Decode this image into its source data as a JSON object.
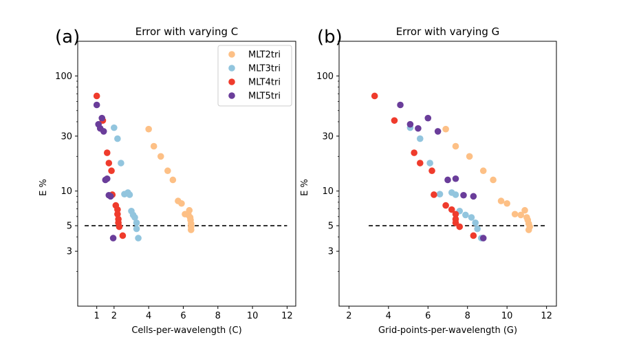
{
  "colors": {
    "MLT2tri": "#fdc086",
    "MLT3tri": "#92c5de",
    "MLT4tri": "#ef3b2c",
    "MLT5tri": "#6a3d9a"
  },
  "chart_data": [
    {
      "type": "scatter",
      "panel_label": "(a)",
      "title": "Error with varying C",
      "xlabel": "Cells-per-wavelength (C)",
      "ylabel": "E %",
      "xscale": "linear",
      "yscale": "log",
      "xlim": [
        -0.1,
        12.5
      ],
      "ylim": [
        1.0,
        200
      ],
      "xticks": [
        1,
        2,
        4,
        6,
        8,
        10,
        12
      ],
      "yticks": [
        3,
        5,
        10,
        30,
        100
      ],
      "legend": "top-right",
      "reference_line": {
        "y": 5,
        "x_range": [
          0.3,
          12.0
        ],
        "style": "dashed"
      },
      "series": [
        {
          "name": "MLT2tri",
          "points": [
            [
              4.0,
              34.5
            ],
            [
              4.3,
              24.5
            ],
            [
              4.7,
              20.0
            ],
            [
              5.1,
              15.0
            ],
            [
              5.4,
              12.5
            ],
            [
              5.7,
              8.2
            ],
            [
              5.9,
              7.8
            ],
            [
              6.1,
              6.3
            ],
            [
              6.3,
              6.2
            ],
            [
              6.35,
              6.8
            ],
            [
              6.4,
              5.9
            ],
            [
              6.42,
              5.6
            ],
            [
              6.45,
              5.2
            ],
            [
              6.45,
              4.9
            ],
            [
              6.45,
              4.6
            ]
          ]
        },
        {
          "name": "MLT3tri",
          "points": [
            [
              2.0,
              35.5
            ],
            [
              2.2,
              28.5
            ],
            [
              2.4,
              17.5
            ],
            [
              2.6,
              9.4
            ],
            [
              2.8,
              9.7
            ],
            [
              2.9,
              9.3
            ],
            [
              3.0,
              6.7
            ],
            [
              3.1,
              6.2
            ],
            [
              3.2,
              5.9
            ],
            [
              3.3,
              5.3
            ],
            [
              3.3,
              4.7
            ],
            [
              3.4,
              3.9
            ]
          ]
        },
        {
          "name": "MLT4tri",
          "points": [
            [
              1.0,
              67
            ],
            [
              1.35,
              41
            ],
            [
              1.6,
              21.5
            ],
            [
              1.7,
              17.5
            ],
            [
              1.85,
              15
            ],
            [
              1.9,
              9.3
            ],
            [
              2.1,
              7.5
            ],
            [
              2.2,
              6.9
            ],
            [
              2.2,
              6.3
            ],
            [
              2.25,
              5.7
            ],
            [
              2.25,
              5.3
            ],
            [
              2.3,
              4.9
            ],
            [
              2.5,
              4.1
            ]
          ]
        },
        {
          "name": "MLT5tri",
          "points": [
            [
              1.0,
              56
            ],
            [
              1.1,
              38
            ],
            [
              1.2,
              35
            ],
            [
              1.3,
              43
            ],
            [
              1.4,
              33
            ],
            [
              1.5,
              12.5
            ],
            [
              1.6,
              12.8
            ],
            [
              1.7,
              9.2
            ],
            [
              1.8,
              9.0
            ],
            [
              1.95,
              3.9
            ]
          ]
        }
      ]
    },
    {
      "type": "scatter",
      "panel_label": "(b)",
      "title": "Error with varying G",
      "xlabel": "Grid-points-per-wavelength (G)",
      "ylabel": "E %",
      "xscale": "linear",
      "yscale": "log",
      "xlim": [
        1.5,
        12.5
      ],
      "ylim": [
        1.0,
        200
      ],
      "xticks": [
        2,
        4,
        6,
        8,
        10,
        12
      ],
      "yticks": [
        3,
        5,
        10,
        30,
        100
      ],
      "legend": "none",
      "reference_line": {
        "y": 5,
        "x_range": [
          3.0,
          12.0
        ],
        "style": "dashed"
      },
      "series": [
        {
          "name": "MLT2tri",
          "points": [
            [
              6.9,
              34.5
            ],
            [
              7.4,
              24.5
            ],
            [
              8.1,
              20.0
            ],
            [
              8.8,
              15.0
            ],
            [
              9.3,
              12.5
            ],
            [
              9.7,
              8.2
            ],
            [
              10.0,
              7.8
            ],
            [
              10.4,
              6.3
            ],
            [
              10.7,
              6.2
            ],
            [
              10.9,
              6.8
            ],
            [
              11.0,
              5.9
            ],
            [
              11.05,
              5.6
            ],
            [
              11.1,
              5.2
            ],
            [
              11.15,
              4.9
            ],
            [
              11.1,
              4.6
            ]
          ]
        },
        {
          "name": "MLT3tri",
          "points": [
            [
              5.1,
              35.5
            ],
            [
              5.6,
              28.5
            ],
            [
              6.1,
              17.5
            ],
            [
              6.6,
              9.4
            ],
            [
              7.2,
              9.7
            ],
            [
              7.4,
              9.3
            ],
            [
              7.6,
              6.7
            ],
            [
              7.9,
              6.2
            ],
            [
              8.2,
              5.9
            ],
            [
              8.4,
              5.3
            ],
            [
              8.5,
              4.7
            ],
            [
              8.7,
              3.9
            ]
          ]
        },
        {
          "name": "MLT4tri",
          "points": [
            [
              3.3,
              67
            ],
            [
              4.3,
              41
            ],
            [
              5.3,
              21.5
            ],
            [
              5.6,
              17.5
            ],
            [
              6.2,
              15
            ],
            [
              6.3,
              9.3
            ],
            [
              6.9,
              7.5
            ],
            [
              7.2,
              6.9
            ],
            [
              7.4,
              6.3
            ],
            [
              7.4,
              5.7
            ],
            [
              7.4,
              5.3
            ],
            [
              7.6,
              4.9
            ],
            [
              8.3,
              4.1
            ]
          ]
        },
        {
          "name": "MLT5tri",
          "points": [
            [
              4.6,
              56
            ],
            [
              5.1,
              38
            ],
            [
              5.5,
              35
            ],
            [
              6.0,
              43
            ],
            [
              6.5,
              33
            ],
            [
              7.0,
              12.5
            ],
            [
              7.4,
              12.8
            ],
            [
              7.8,
              9.2
            ],
            [
              8.3,
              9.0
            ],
            [
              8.8,
              3.9
            ]
          ]
        }
      ]
    }
  ]
}
